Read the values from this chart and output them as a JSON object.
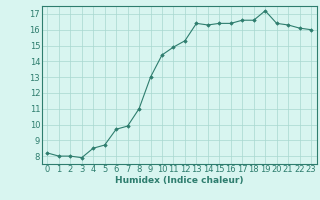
{
  "x": [
    0,
    1,
    2,
    3,
    4,
    5,
    6,
    7,
    8,
    9,
    10,
    11,
    12,
    13,
    14,
    15,
    16,
    17,
    18,
    19,
    20,
    21,
    22,
    23
  ],
  "y": [
    8.2,
    8.0,
    8.0,
    7.9,
    8.5,
    8.7,
    9.7,
    9.9,
    11.0,
    13.0,
    14.4,
    14.9,
    15.3,
    16.4,
    16.3,
    16.4,
    16.4,
    16.6,
    16.6,
    17.2,
    16.4,
    16.3,
    16.1,
    16.0
  ],
  "xlabel": "Humidex (Indice chaleur)",
  "xlim": [
    -0.5,
    23.5
  ],
  "ylim": [
    7.5,
    17.5
  ],
  "yticks": [
    8,
    9,
    10,
    11,
    12,
    13,
    14,
    15,
    16,
    17
  ],
  "xticks": [
    0,
    1,
    2,
    3,
    4,
    5,
    6,
    7,
    8,
    9,
    10,
    11,
    12,
    13,
    14,
    15,
    16,
    17,
    18,
    19,
    20,
    21,
    22,
    23
  ],
  "line_color": "#2e7d6e",
  "marker": "D",
  "marker_size": 1.8,
  "bg_color": "#d8f5f0",
  "grid_color": "#a8d8d0",
  "label_fontsize": 6.5,
  "tick_fontsize": 6.0
}
